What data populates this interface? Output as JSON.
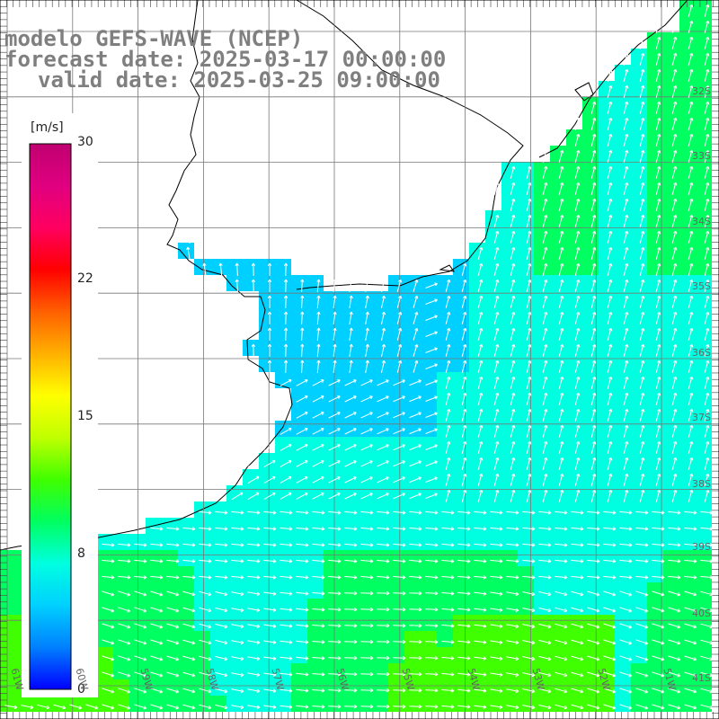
{
  "title": {
    "line1": "modelo GEFS-WAVE (NCEP)",
    "line2": "forecast date: 2025-03-17 00:00:00",
    "line3": "valid date: 2025-03-25 09:00:00"
  },
  "colorbar": {
    "unit": "[m/s]",
    "ticks": [
      "30",
      "22",
      "15",
      "8",
      "0"
    ],
    "tick_values": [
      30,
      22,
      15,
      8,
      0
    ],
    "range": [
      0,
      30
    ],
    "colors": [
      "#0000ff",
      "#0080ff",
      "#00d0ff",
      "#00ffe0",
      "#00ff60",
      "#40ff00",
      "#c0ff00",
      "#ffff00",
      "#ffb000",
      "#ff6000",
      "#ff0000",
      "#ff0060",
      "#e00080",
      "#c00070"
    ]
  },
  "map": {
    "lat_labels": [
      "32S",
      "33S",
      "34S",
      "35S",
      "36S",
      "37S",
      "38S",
      "39S",
      "40S",
      "41S"
    ],
    "lon_labels": [
      "61W",
      "60W",
      "59W",
      "58W",
      "57W",
      "56W",
      "55W",
      "54W",
      "53W",
      "52W",
      "51W"
    ],
    "land_color": "#ffffff",
    "grid_color": "#777777",
    "arrow_color": "#ffffff"
  }
}
